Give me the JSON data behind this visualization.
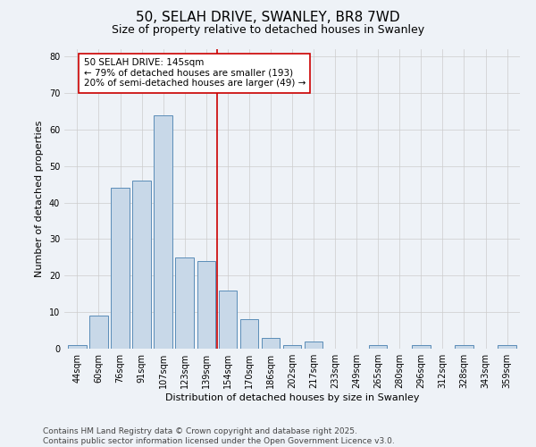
{
  "title": "50, SELAH DRIVE, SWANLEY, BR8 7WD",
  "subtitle": "Size of property relative to detached houses in Swanley",
  "xlabel": "Distribution of detached houses by size in Swanley",
  "ylabel": "Number of detached properties",
  "categories": [
    "44sqm",
    "60sqm",
    "76sqm",
    "91sqm",
    "107sqm",
    "123sqm",
    "139sqm",
    "154sqm",
    "170sqm",
    "186sqm",
    "202sqm",
    "217sqm",
    "233sqm",
    "249sqm",
    "265sqm",
    "280sqm",
    "296sqm",
    "312sqm",
    "328sqm",
    "343sqm",
    "359sqm"
  ],
  "values": [
    1,
    9,
    44,
    46,
    64,
    25,
    24,
    16,
    8,
    3,
    1,
    2,
    0,
    0,
    1,
    0,
    1,
    0,
    1,
    0,
    1
  ],
  "bar_color": "#c8d8e8",
  "bar_edge_color": "#5b8db8",
  "property_line_color": "#cc0000",
  "annotation_text": "50 SELAH DRIVE: 145sqm\n← 79% of detached houses are smaller (193)\n20% of semi-detached houses are larger (49) →",
  "annotation_box_color": "#ffffff",
  "annotation_box_edge_color": "#cc0000",
  "ylim": [
    0,
    82
  ],
  "yticks": [
    0,
    10,
    20,
    30,
    40,
    50,
    60,
    70,
    80
  ],
  "grid_color": "#cccccc",
  "bg_color": "#eef2f7",
  "footer_text": "Contains HM Land Registry data © Crown copyright and database right 2025.\nContains public sector information licensed under the Open Government Licence v3.0.",
  "title_fontsize": 11,
  "subtitle_fontsize": 9,
  "label_fontsize": 8,
  "tick_fontsize": 7,
  "footer_fontsize": 6.5,
  "annotation_fontsize": 7.5
}
